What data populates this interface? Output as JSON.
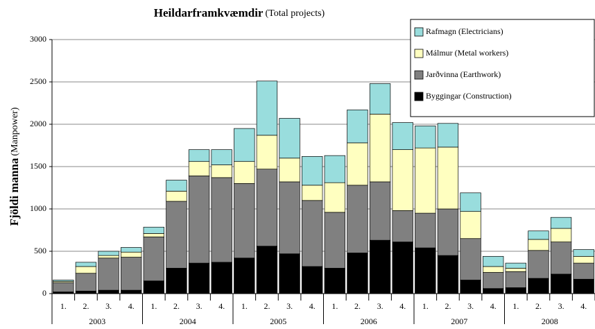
{
  "chart_data": {
    "type": "stacked_bar",
    "title": "Heildarframkvæmdir",
    "subtitle": "(Total projects)",
    "ylabel": "Fjöldi manna",
    "ylabel_note": "(Manpower)",
    "categories": [
      "1.",
      "2.",
      "3.",
      "4.",
      "1.",
      "2.",
      "3.",
      "4.",
      "1.",
      "2.",
      "3.",
      "4.",
      "1.",
      "2.",
      "3.",
      "4.",
      "1.",
      "2.",
      "3.",
      "4.",
      "1.",
      "2.",
      "3.",
      "4."
    ],
    "groups": [
      "2003",
      "2004",
      "2005",
      "2006",
      "2007",
      "2008"
    ],
    "series": [
      {
        "name": "Byggingar (Construction)",
        "color": "#000000",
        "values": [
          20,
          30,
          40,
          40,
          150,
          300,
          360,
          370,
          420,
          560,
          470,
          320,
          300,
          480,
          630,
          610,
          540,
          450,
          160,
          60,
          70,
          180,
          230,
          170
        ]
      },
      {
        "name": "Jarðvinna (Earthwork)",
        "color": "#808080",
        "values": [
          110,
          210,
          380,
          390,
          520,
          790,
          1030,
          1000,
          880,
          910,
          850,
          780,
          660,
          800,
          690,
          370,
          410,
          550,
          490,
          190,
          190,
          330,
          380,
          190
        ]
      },
      {
        "name": "Málmur (Metal workers)",
        "color": "#ffffc0",
        "values": [
          15,
          80,
          30,
          60,
          40,
          120,
          170,
          150,
          260,
          400,
          280,
          180,
          350,
          500,
          800,
          720,
          770,
          730,
          320,
          70,
          40,
          130,
          160,
          80
        ]
      },
      {
        "name": "Rafmagn (Electricians)",
        "color": "#99dddd",
        "values": [
          15,
          50,
          50,
          55,
          75,
          130,
          140,
          180,
          390,
          640,
          470,
          340,
          320,
          390,
          360,
          320,
          260,
          280,
          220,
          120,
          60,
          100,
          130,
          80
        ]
      }
    ],
    "ylim": [
      0,
      3000
    ],
    "yticks": [
      0,
      500,
      1000,
      1500,
      2000,
      2500,
      3000
    ],
    "grid": true,
    "legend": "upper right"
  }
}
